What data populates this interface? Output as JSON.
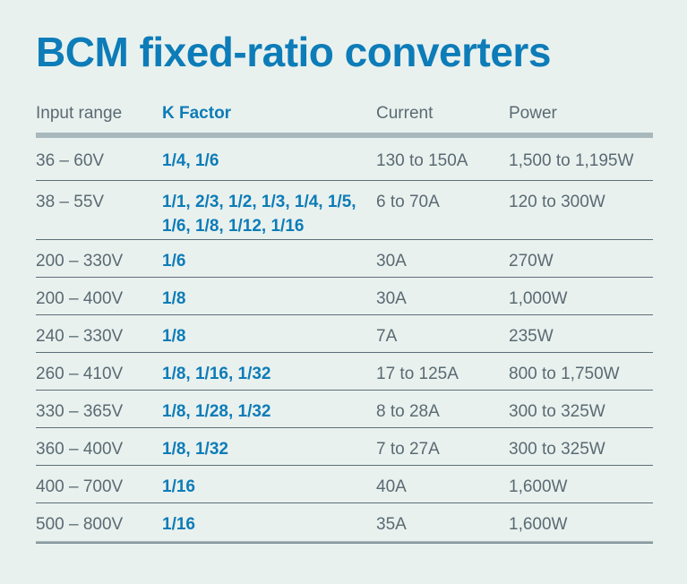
{
  "page": {
    "title": "BCM fixed-ratio converters"
  },
  "colors": {
    "background": "#e9f1ee",
    "accent_blue": "#0d7cb8",
    "text_gray": "#5a6a73",
    "header_bar_gray": "#a9b8bd",
    "row_separator": "#5d6e78"
  },
  "table": {
    "headers": [
      "Input range",
      "K Factor",
      "Current",
      "Power"
    ],
    "rows": [
      {
        "input_range": "36 – 60V",
        "k_factor": "1/4, 1/6",
        "current": "130 to 150A",
        "power": "1,500 to 1,195W"
      },
      {
        "input_range": "38 – 55V",
        "k_factor": "1/1, 2/3, 1/2, 1/3, 1/4, 1/5,\n1/6, 1/8, 1/12, 1/16",
        "current": "6 to 70A",
        "power": "120 to 300W"
      },
      {
        "input_range": "200 – 330V",
        "k_factor": "1/6",
        "current": "30A",
        "power": "270W"
      },
      {
        "input_range": "200 – 400V",
        "k_factor": "1/8",
        "current": "30A",
        "power": "1,000W"
      },
      {
        "input_range": "240 – 330V",
        "k_factor": "1/8",
        "current": "7A",
        "power": "235W"
      },
      {
        "input_range": "260 – 410V",
        "k_factor": "1/8, 1/16, 1/32",
        "current": "17 to 125A",
        "power": "800 to 1,750W"
      },
      {
        "input_range": "330 – 365V",
        "k_factor": "1/8, 1/28, 1/32",
        "current": "8 to 28A",
        "power": "300 to 325W"
      },
      {
        "input_range": "360 – 400V",
        "k_factor": "1/8, 1/32",
        "current": "7 to 27A",
        "power": "300 to 325W"
      },
      {
        "input_range": "400 – 700V",
        "k_factor": "1/16",
        "current": "40A",
        "power": "1,600W"
      },
      {
        "input_range": "500 – 800V",
        "k_factor": "1/16",
        "current": "35A",
        "power": "1,600W"
      }
    ]
  },
  "chart_data": {
    "type": "table",
    "title": "BCM fixed-ratio converters",
    "columns": [
      "Input range",
      "K Factor",
      "Current",
      "Power"
    ],
    "rows": [
      [
        "36 – 60V",
        "1/4, 1/6",
        "130 to 150A",
        "1,500 to 1,195W"
      ],
      [
        "38 – 55V",
        "1/1, 2/3, 1/2, 1/3, 1/4, 1/5, 1/6, 1/8, 1/12, 1/16",
        "6 to 70A",
        "120 to 300W"
      ],
      [
        "200 – 330V",
        "1/6",
        "30A",
        "270W"
      ],
      [
        "200 – 400V",
        "1/8",
        "30A",
        "1,000W"
      ],
      [
        "240 – 330V",
        "1/8",
        "7A",
        "235W"
      ],
      [
        "260 – 410V",
        "1/8, 1/16, 1/32",
        "17 to 125A",
        "800 to 1,750W"
      ],
      [
        "330 – 365V",
        "1/8, 1/28, 1/32",
        "8 to 28A",
        "300 to 325W"
      ],
      [
        "360 – 400V",
        "1/8, 1/32",
        "7 to 27A",
        "300 to 325W"
      ],
      [
        "400 – 700V",
        "1/16",
        "40A",
        "1,600W"
      ],
      [
        "500 – 800V",
        "1/16",
        "35A",
        "1,600W"
      ]
    ]
  }
}
